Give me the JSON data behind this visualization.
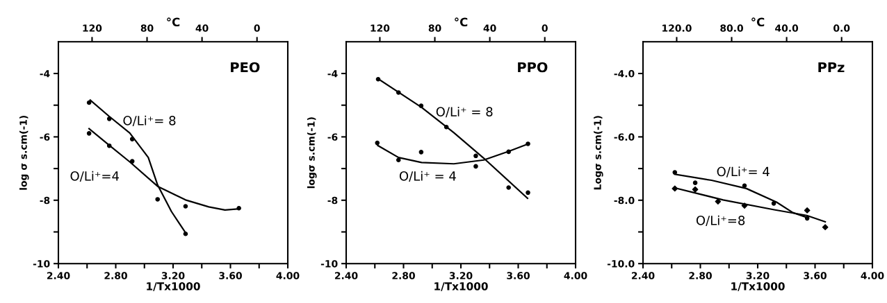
{
  "chart_data": [
    {
      "type": "scatter",
      "xlabel": "1/Tx1000",
      "ylabel": "log σ s.cm(-1)",
      "x2label": "°C",
      "xlim": [
        2.4,
        4.0
      ],
      "ylim": [
        -10,
        -3
      ],
      "xticks": [
        {
          "value": 2.4,
          "label": "2.40"
        },
        {
          "value": 2.6,
          "label": null
        },
        {
          "value": 2.8,
          "label": "2.80"
        },
        {
          "value": 3.0,
          "label": null
        },
        {
          "value": 3.2,
          "label": "3.20"
        },
        {
          "value": 3.4,
          "label": null
        },
        {
          "value": 3.6,
          "label": "3.60"
        },
        {
          "value": 3.8,
          "label": null
        },
        {
          "value": 4.0,
          "label": "4.00"
        }
      ],
      "yticks": [
        -4,
        {
          "value": -5,
          "label": null
        },
        -6,
        {
          "value": -7,
          "label": null
        },
        -8,
        {
          "value": -9,
          "label": null
        },
        -10
      ],
      "x2lim": [
        144.5,
        -22.4
      ],
      "x2ticks": [
        120,
        80,
        40,
        0
      ],
      "grid": false,
      "series": [
        {
          "type": "scatter",
          "marker": "circle",
          "color": "#000000",
          "x": [
            2.614,
            2.755,
            2.915,
            3.287
          ],
          "values": [
            -4.92,
            -5.43,
            -6.07,
            -9.06
          ]
        },
        {
          "type": "scatter",
          "marker": "circle",
          "color": "#000000",
          "x": [
            2.614,
            2.755,
            2.915,
            3.092,
            3.287,
            3.659
          ],
          "values": [
            -5.89,
            -6.28,
            -6.77,
            -7.97,
            -8.19,
            -8.25
          ]
        },
        {
          "type": "line",
          "marker": "none",
          "color": "#000000",
          "x": [
            2.622,
            2.751,
            2.898,
            3.027,
            3.092,
            3.189,
            3.295
          ],
          "values": [
            -4.84,
            -5.34,
            -5.88,
            -6.65,
            -7.52,
            -8.36,
            -9.08
          ]
        },
        {
          "type": "line",
          "marker": "none",
          "color": "#000000",
          "x": [
            2.614,
            2.751,
            2.898,
            3.092,
            3.287,
            3.449,
            3.562,
            3.659
          ],
          "values": [
            -5.74,
            -6.25,
            -6.79,
            -7.56,
            -7.99,
            -8.21,
            -8.31,
            -8.27
          ]
        }
      ],
      "annotations": [
        "PEO",
        "O/Li⁺= 8",
        "O/Li⁺=4"
      ]
    },
    {
      "type": "scatter",
      "xlabel": "1/Tx1000",
      "ylabel": "logσ s.cm(-1)",
      "x2label": "°C",
      "xlim": [
        2.4,
        4.0
      ],
      "ylim": [
        -10,
        -3
      ],
      "xticks": [
        {
          "value": 2.4,
          "label": "2.40"
        },
        {
          "value": 2.6,
          "label": null
        },
        {
          "value": 2.8,
          "label": "2.80"
        },
        {
          "value": 3.0,
          "label": null
        },
        {
          "value": 3.2,
          "label": "3.20"
        },
        {
          "value": 3.4,
          "label": null
        },
        {
          "value": 3.6,
          "label": "3.60"
        },
        {
          "value": 3.8,
          "label": null
        },
        {
          "value": 4.0,
          "label": "4.00"
        }
      ],
      "yticks": [
        -4,
        {
          "value": -5,
          "label": null
        },
        -6,
        {
          "value": -7,
          "label": null
        },
        -8,
        {
          "value": -9,
          "label": null
        },
        -10
      ],
      "x2lim": [
        144.5,
        -22.4
      ],
      "x2ticks": [
        120,
        80,
        40,
        0
      ],
      "grid": false,
      "series": [
        {
          "type": "scatter",
          "marker": "circle",
          "color": "#000000",
          "x": [
            2.623,
            2.765,
            2.923,
            3.099,
            3.304,
            3.533,
            3.668
          ],
          "values": [
            -4.18,
            -4.6,
            -5.02,
            -5.69,
            -6.6,
            -7.6,
            -7.76
          ]
        },
        {
          "type": "scatter",
          "marker": "circle",
          "color": "#000000",
          "x": [
            2.617,
            2.765,
            2.923,
            3.304,
            3.533,
            3.668
          ],
          "values": [
            -6.19,
            -6.73,
            -6.48,
            -6.93,
            -6.47,
            -6.22
          ]
        },
        {
          "type": "line",
          "marker": "none",
          "color": "#000000",
          "x": [
            2.623,
            2.926,
            3.151,
            3.376,
            3.665
          ],
          "values": [
            -4.17,
            -5.07,
            -5.87,
            -6.74,
            -7.94
          ]
        },
        {
          "type": "line",
          "marker": "none",
          "color": "#000000",
          "x": [
            2.62,
            2.765,
            2.926,
            3.151,
            3.36,
            3.537,
            3.665
          ],
          "values": [
            -6.27,
            -6.65,
            -6.81,
            -6.85,
            -6.73,
            -6.45,
            -6.23
          ]
        }
      ],
      "annotations": [
        "PPO",
        "O/Li⁺ = 8",
        "O/Li⁺ = 4"
      ]
    },
    {
      "type": "scatter",
      "xlabel": "1/Tx1000",
      "ylabel": "Logσ s.cm(-1)",
      "x2label": "°C",
      "xlim": [
        2.4,
        4.0
      ],
      "ylim": [
        -10,
        -3
      ],
      "xticks": [
        {
          "value": 2.4,
          "label": "2.40"
        },
        {
          "value": 2.6,
          "label": null
        },
        {
          "value": 2.8,
          "label": "2.80"
        },
        {
          "value": 3.0,
          "label": null
        },
        {
          "value": 3.2,
          "label": "3.20"
        },
        {
          "value": 3.4,
          "label": null
        },
        {
          "value": 3.6,
          "label": "3.60"
        },
        {
          "value": 3.8,
          "label": null
        },
        {
          "value": 4.0,
          "label": "4.00"
        }
      ],
      "yticks": [
        {
          "value": -4,
          "label": "-4.0"
        },
        {
          "value": -5,
          "label": null
        },
        {
          "value": -6,
          "label": "-6.0"
        },
        {
          "value": -7,
          "label": null
        },
        {
          "value": -8,
          "label": "-8.0"
        },
        {
          "value": -9,
          "label": null
        },
        {
          "value": -10,
          "label": "-10.0"
        }
      ],
      "x2lim": [
        144.5,
        -22.4
      ],
      "x2ticks": [
        {
          "value": 120,
          "label": "120.0"
        },
        {
          "value": 80,
          "label": "80.0"
        },
        {
          "value": 40,
          "label": "40.0"
        },
        {
          "value": 0,
          "label": "0.0"
        }
      ],
      "grid": false,
      "series": [
        {
          "type": "scatter",
          "marker": "circle",
          "color": "#000000",
          "x": [
            2.622,
            2.764,
            3.108,
            3.312,
            3.545
          ],
          "values": [
            -7.12,
            -7.45,
            -7.54,
            -8.1,
            -8.57
          ]
        },
        {
          "type": "scatter",
          "marker": "diamond",
          "color": "#000000",
          "x": [
            2.622,
            2.764,
            2.923,
            3.108,
            3.545,
            3.671
          ],
          "values": [
            -7.63,
            -7.66,
            -8.04,
            -8.17,
            -8.32,
            -8.85
          ]
        },
        {
          "type": "line",
          "marker": "none",
          "color": "#000000",
          "x": [
            2.622,
            2.878,
            3.121,
            3.331,
            3.445,
            3.542
          ],
          "values": [
            -7.18,
            -7.37,
            -7.63,
            -8.06,
            -8.39,
            -8.54
          ]
        },
        {
          "type": "line",
          "marker": "none",
          "color": "#000000",
          "x": [
            2.622,
            2.959,
            3.315,
            3.542,
            3.671
          ],
          "values": [
            -7.61,
            -7.99,
            -8.3,
            -8.48,
            -8.68
          ]
        }
      ],
      "annotations": [
        "PPz",
        "O/Li⁺= 4",
        "O/Li⁺=8"
      ]
    }
  ]
}
